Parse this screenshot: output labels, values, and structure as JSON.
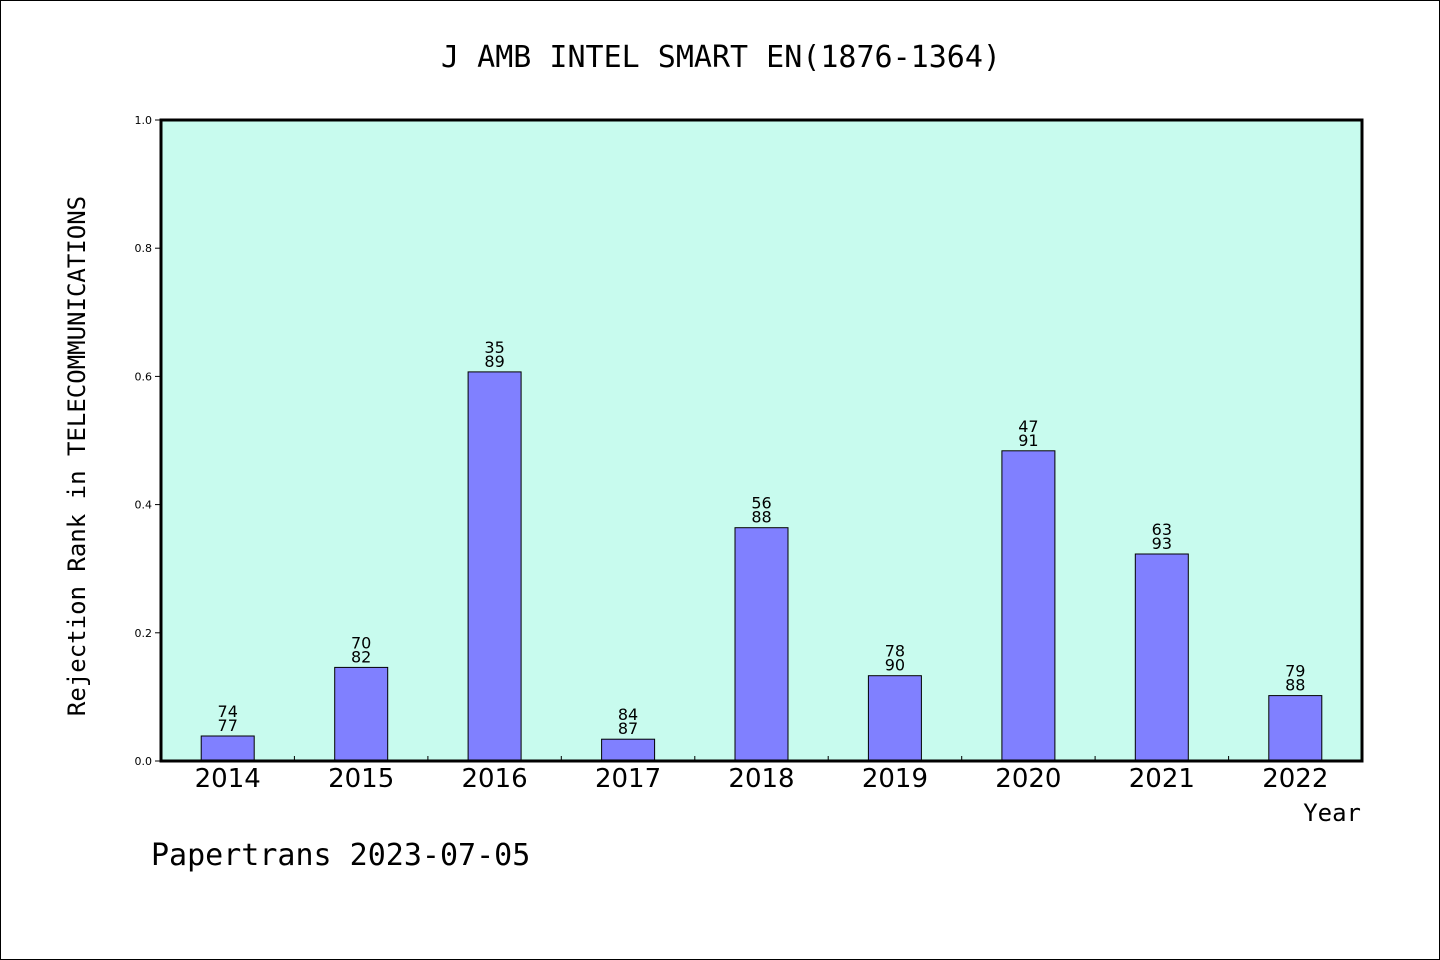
{
  "footer": "Papertrans 2023-07-05",
  "colors": {
    "plot_background": "#c8fbee",
    "bar_fill": "#8080ff",
    "bar_stroke": "#000000"
  },
  "chart_data": {
    "type": "bar",
    "title": "J AMB INTEL SMART EN(1876-1364)",
    "xlabel": "Year",
    "ylabel": "Rejection Rank in TELECOMMUNICATIONS",
    "ylim": [
      0,
      1.0
    ],
    "yticks": [
      "0.0",
      "0.2",
      "0.4",
      "0.6",
      "0.8",
      "1.0"
    ],
    "grid": false,
    "legend": "none",
    "categories": [
      "2014",
      "2015",
      "2016",
      "2017",
      "2018",
      "2019",
      "2020",
      "2021",
      "2022"
    ],
    "values": [
      0.039,
      0.146,
      0.607,
      0.034,
      0.364,
      0.133,
      0.484,
      0.323,
      0.102
    ],
    "bar_labels": [
      [
        "74",
        "77"
      ],
      [
        "70",
        "82"
      ],
      [
        "35",
        "89"
      ],
      [
        "84",
        "87"
      ],
      [
        "56",
        "88"
      ],
      [
        "78",
        "90"
      ],
      [
        "47",
        "91"
      ],
      [
        "63",
        "93"
      ],
      [
        "79",
        "88"
      ]
    ]
  }
}
